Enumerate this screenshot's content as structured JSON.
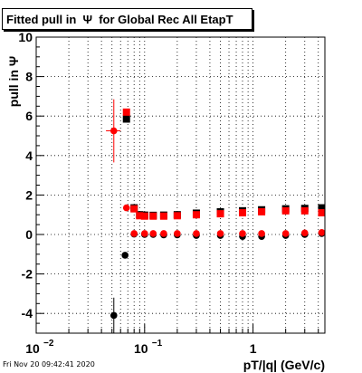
{
  "header": {
    "title": "Fitted pull in  Ψ  for Global Rec All EtapT"
  },
  "footer": {
    "timestamp": "Fri Nov 20 09:42:41 2020"
  },
  "chart_data": {
    "type": "scatter",
    "title": "Fitted pull in  Ψ  for Global Rec All EtapT",
    "xlabel": "pT/|q| (GeV/c)",
    "ylabel": "pull in  Ψ",
    "xscale": "log",
    "xlim": [
      0.01,
      4.6
    ],
    "ylim": [
      -5,
      10
    ],
    "grid": true,
    "x_ticks": [
      {
        "value": 0.01,
        "label": "10",
        "sup": "−2"
      },
      {
        "value": 0.1,
        "label": "10",
        "sup": "−1"
      },
      {
        "value": 1,
        "label": "1",
        "sup": ""
      }
    ],
    "y_ticks": [
      -4,
      -2,
      0,
      2,
      4,
      6,
      8,
      10
    ],
    "colors": {
      "black": "#000000",
      "red": "#ff0000"
    },
    "series": [
      {
        "color": "#000000",
        "marker": "square",
        "x": [
          0.068,
          0.08,
          0.09,
          0.1,
          0.12,
          0.15,
          0.2,
          0.3,
          0.5,
          0.8,
          1.2,
          2.0,
          3.0,
          4.3
        ],
        "y": [
          5.85,
          1.35,
          1.0,
          0.98,
          0.97,
          0.98,
          1.0,
          1.08,
          1.15,
          1.2,
          1.25,
          1.3,
          1.32,
          1.35
        ]
      },
      {
        "color": "#ff0000",
        "marker": "square",
        "x": [
          0.068,
          0.08,
          0.09,
          0.1,
          0.12,
          0.15,
          0.2,
          0.3,
          0.5,
          0.8,
          1.2,
          2.0,
          3.0,
          4.3
        ],
        "y": [
          6.2,
          1.3,
          0.95,
          0.93,
          0.93,
          0.93,
          0.95,
          1.0,
          1.05,
          1.1,
          1.15,
          1.2,
          1.2,
          1.1
        ]
      },
      {
        "color": "#000000",
        "marker": "circle",
        "x": [
          0.052,
          0.066,
          0.08,
          0.1,
          0.12,
          0.15,
          0.2,
          0.3,
          0.5,
          0.8,
          1.2,
          2.0,
          3.0,
          4.3
        ],
        "y": [
          -4.1,
          -1.05,
          0.02,
          0.0,
          0.0,
          -0.02,
          -0.02,
          -0.05,
          -0.05,
          -0.1,
          -0.1,
          -0.05,
          0.0,
          0.05
        ],
        "yerr": [
          0.9,
          0.15,
          0.05,
          0.05,
          0.05,
          0.05,
          0.05,
          0.05,
          0.05,
          0.05,
          0.05,
          0.05,
          0.05,
          0.05
        ]
      },
      {
        "color": "#ff0000",
        "marker": "circle",
        "x": [
          0.052,
          0.068,
          0.08,
          0.1,
          0.12,
          0.15,
          0.2,
          0.3,
          0.5,
          0.8,
          1.2,
          2.0,
          3.0,
          4.3
        ],
        "y": [
          5.25,
          1.35,
          0.05,
          0.05,
          0.05,
          0.05,
          0.05,
          0.05,
          0.05,
          0.05,
          0.05,
          0.05,
          0.08,
          0.1
        ],
        "yerr": [
          1.6,
          0.1,
          0.04,
          0.04,
          0.04,
          0.04,
          0.04,
          0.04,
          0.04,
          0.04,
          0.04,
          0.04,
          0.04,
          0.04
        ],
        "xerr": [
          0.008
        ]
      }
    ]
  }
}
